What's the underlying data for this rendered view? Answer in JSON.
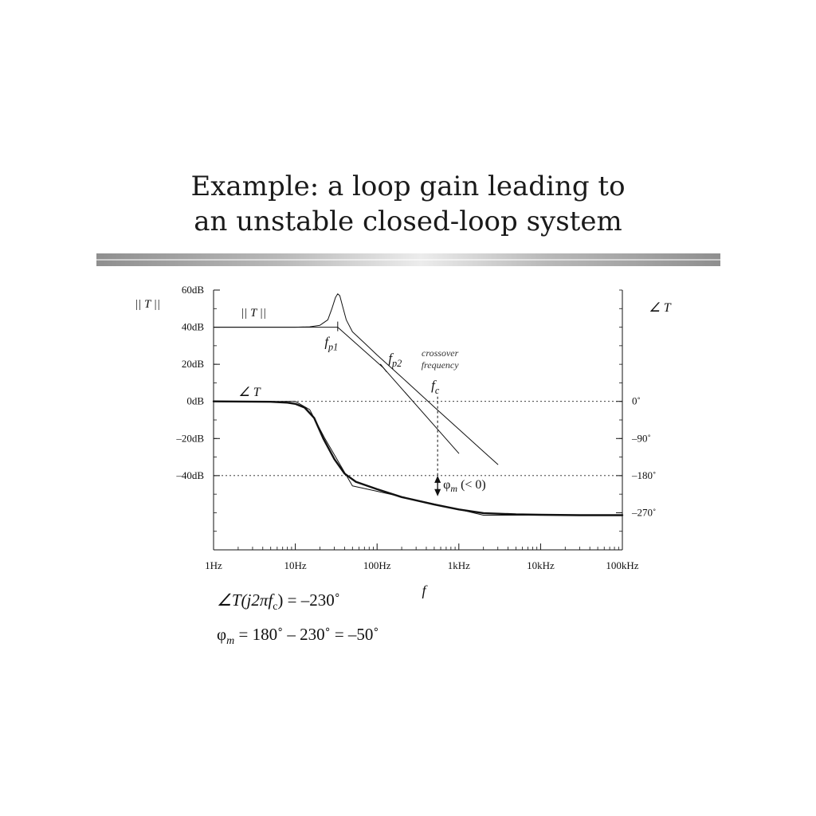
{
  "slide": {
    "title_line1": "Example: a loop gain leading to",
    "title_line2": "an unstable closed-loop system"
  },
  "equations": {
    "eq1_lhs": "∠T(j2πf",
    "eq1_sub": "c",
    "eq1_rhs": ") = –230˚",
    "eq2_phi": "φ",
    "eq2_sub": "m",
    "eq2_rhs": " = 180˚ – 230˚ = –50˚"
  },
  "chart_data": {
    "type": "line",
    "xlabel": "f",
    "x_scale": "log",
    "xlim": [
      1,
      100000
    ],
    "x_ticks": [
      {
        "value": 1,
        "label": "1Hz"
      },
      {
        "value": 10,
        "label": "10Hz"
      },
      {
        "value": 100,
        "label": "100Hz"
      },
      {
        "value": 1000,
        "label": "1kHz"
      },
      {
        "value": 10000,
        "label": "10kHz"
      },
      {
        "value": 100000,
        "label": "100kHz"
      }
    ],
    "ylabel_left": "|| T ||",
    "ylim_left": [
      -80,
      60
    ],
    "y_ticks_left": [
      {
        "value": 60,
        "label": "60dB"
      },
      {
        "value": 40,
        "label": "40dB"
      },
      {
        "value": 20,
        "label": "20dB"
      },
      {
        "value": 0,
        "label": "0dB"
      },
      {
        "value": -20,
        "label": "–20dB"
      },
      {
        "value": -40,
        "label": "–40dB"
      }
    ],
    "ylabel_right": "∠ T",
    "ylim_right": [
      -360,
      270
    ],
    "y_ticks_right": [
      {
        "value": 0,
        "label": "0˚"
      },
      {
        "value": -90,
        "label": "–90˚"
      },
      {
        "value": -180,
        "label": "–180˚"
      },
      {
        "value": -270,
        "label": "–270˚"
      }
    ],
    "reference_lines_db": [
      0,
      -40
    ],
    "series": [
      {
        "name": "|| T ||",
        "axis": "left",
        "style": "thin",
        "points": [
          [
            1,
            40
          ],
          [
            10,
            40
          ],
          [
            15,
            40.2
          ],
          [
            20,
            41
          ],
          [
            25,
            44
          ],
          [
            28,
            50
          ],
          [
            31,
            56
          ],
          [
            33,
            58
          ],
          [
            35,
            57
          ],
          [
            38,
            51
          ],
          [
            42,
            44
          ],
          [
            50,
            37.5
          ],
          [
            70,
            31.5
          ],
          [
            100,
            25
          ],
          [
            200,
            13
          ],
          [
            500,
            -3
          ],
          [
            1000,
            -15
          ],
          [
            2000,
            -27
          ],
          [
            3000,
            -34
          ]
        ]
      },
      {
        "name": "|| T || asymptote",
        "axis": "left",
        "style": "thin",
        "points": [
          [
            1,
            40
          ],
          [
            33,
            40
          ],
          [
            120,
            18
          ],
          [
            1000,
            -28
          ]
        ]
      },
      {
        "name": "∠ T",
        "axis": "right",
        "style": "thick",
        "points": [
          [
            1,
            0
          ],
          [
            5,
            -1
          ],
          [
            8,
            -3
          ],
          [
            10,
            -6
          ],
          [
            13,
            -15
          ],
          [
            17,
            -40
          ],
          [
            22,
            -90
          ],
          [
            30,
            -140
          ],
          [
            40,
            -175
          ],
          [
            55,
            -195
          ],
          [
            100,
            -213
          ],
          [
            200,
            -232
          ],
          [
            500,
            -250
          ],
          [
            1000,
            -262
          ],
          [
            2000,
            -271
          ],
          [
            5000,
            -274
          ],
          [
            10000,
            -275
          ],
          [
            30000,
            -276
          ],
          [
            100000,
            -276
          ]
        ]
      },
      {
        "name": "∠ T asymptote",
        "axis": "right",
        "style": "thin",
        "points": [
          [
            1,
            0
          ],
          [
            10,
            0
          ],
          [
            15,
            -20
          ],
          [
            23,
            -90
          ],
          [
            50,
            -205
          ],
          [
            100,
            -218
          ],
          [
            1000,
            -262
          ],
          [
            2000,
            -276
          ],
          [
            100000,
            -276
          ]
        ]
      }
    ],
    "annotations": {
      "mag_curve_label": "|| T ||",
      "phase_curve_label": "∠ T",
      "fp1_main": "f",
      "fp1_sub": "p1",
      "fp1_x": 33,
      "fp1_y_db": 40,
      "fp2_main": "f",
      "fp2_sub": "p2",
      "fp2_x": 120,
      "fp2_y_db": 18,
      "crossover_line1": "crossover",
      "crossover_line2": "frequency",
      "fc_main": "f",
      "fc_sub": "c",
      "fc_x": 550,
      "phase_margin_main": "φ",
      "phase_margin_sub": "m",
      "phase_margin_note": " (< 0)",
      "phase_margin_from_db": -40,
      "phase_margin_to_deg": -230
    },
    "grid": false
  }
}
